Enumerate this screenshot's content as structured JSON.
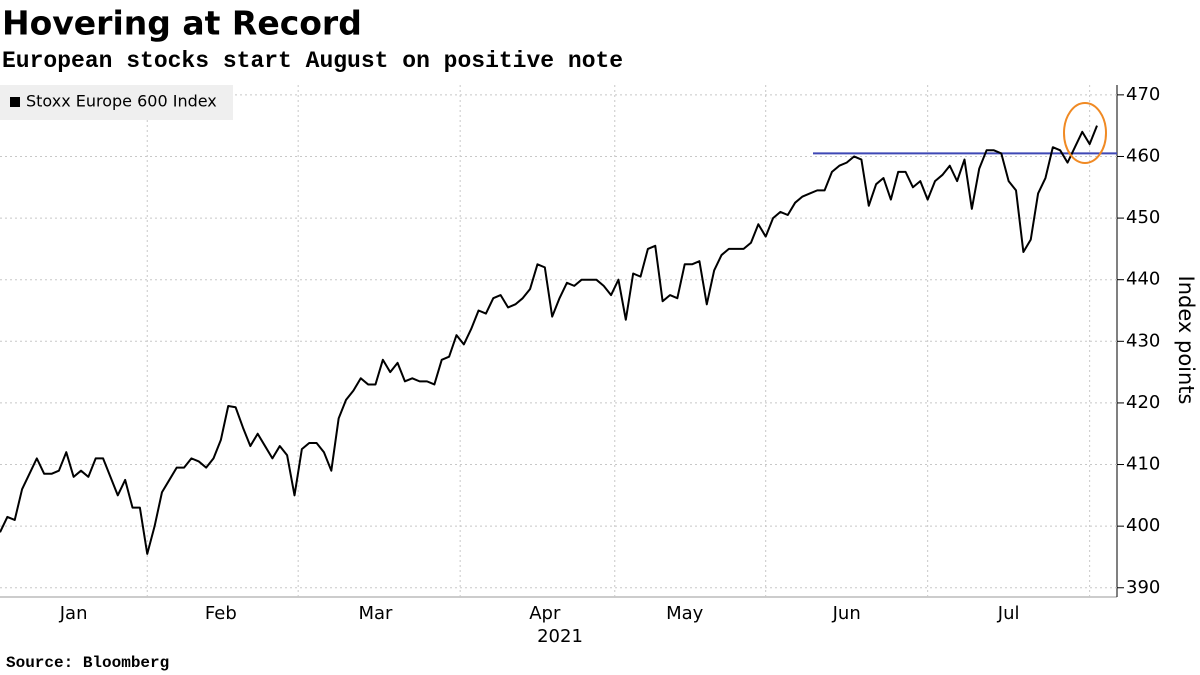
{
  "chart_data": {
    "type": "line",
    "title": "Hovering at Record",
    "subtitle": "European stocks start August on positive note",
    "source": "Source: Bloomberg",
    "xlabel": "2021",
    "ylabel": "Index points",
    "categories": [
      null,
      null,
      null,
      null,
      null,
      null,
      null,
      null,
      null,
      null,
      "Jan",
      null,
      null,
      null,
      null,
      null,
      null,
      null,
      null,
      null,
      null,
      null,
      null,
      null,
      null,
      null,
      null,
      null,
      null,
      null,
      "Feb",
      null,
      null,
      null,
      null,
      null,
      null,
      null,
      null,
      null,
      null,
      null,
      null,
      null,
      null,
      null,
      null,
      null,
      null,
      null,
      null,
      "Mar",
      null,
      null,
      null,
      null,
      null,
      null,
      null,
      null,
      null,
      null,
      null,
      null,
      null,
      null,
      null,
      null,
      null,
      null,
      null,
      null,
      null,
      null,
      "Apr",
      null,
      null,
      null,
      null,
      null,
      null,
      null,
      null,
      null,
      null,
      null,
      null,
      null,
      null,
      null,
      null,
      null,
      null,
      "May",
      null,
      null,
      null,
      null,
      null,
      null,
      null,
      null,
      null,
      null,
      null,
      null,
      null,
      null,
      null,
      null,
      null,
      null,
      null,
      null,
      null,
      "Jun",
      null,
      null,
      null,
      null,
      null,
      null,
      null,
      null,
      null,
      null,
      null,
      null,
      null,
      null,
      null,
      null,
      null,
      null,
      null,
      null,
      null,
      "Jul",
      null,
      null,
      null,
      null,
      null,
      null,
      null,
      null,
      null,
      null,
      null,
      null
    ],
    "series": [
      {
        "name": "Stoxx Europe 600 Index",
        "color": "#000000",
        "values": [
          399,
          401.5,
          401,
          406,
          408.5,
          411,
          408.5,
          408.5,
          409,
          412,
          408,
          409,
          408,
          411,
          411,
          408,
          405,
          407.5,
          403,
          403,
          395.5,
          400,
          405.5,
          407.5,
          409.5,
          409.5,
          411,
          410.5,
          409.5,
          411,
          414,
          419.5,
          419.3,
          416,
          413,
          415,
          413,
          411,
          413,
          411.5,
          405,
          412.5,
          413.5,
          413.5,
          412,
          409,
          417.5,
          420.5,
          422,
          424,
          423,
          423,
          427,
          425,
          426.5,
          423.5,
          424,
          423.5,
          423.5,
          423,
          427,
          427.5,
          431,
          429.5,
          432,
          435,
          434.5,
          437,
          437.5,
          435.5,
          436,
          437,
          438.5,
          442.5,
          442,
          434,
          437,
          439.5,
          439,
          440,
          440,
          440,
          439,
          437.5,
          440,
          433.5,
          441,
          440.5,
          445,
          445.5,
          436.5,
          437.5,
          437,
          442.5,
          442.5,
          443,
          436,
          441.5,
          444,
          445,
          445,
          445,
          446,
          449,
          447,
          450,
          451,
          450.5,
          452.5,
          453.5,
          454,
          454.5,
          454.5,
          457.5,
          458.5,
          459,
          460,
          459.5,
          452,
          455.5,
          456.5,
          453,
          457.5,
          457.5,
          455,
          456,
          453,
          456,
          457,
          458.5,
          456,
          459.5,
          451.5,
          458,
          461,
          461,
          460.5,
          456,
          454.5,
          444.5,
          446.5,
          454,
          456.5,
          461.5,
          461,
          459,
          461.5,
          464,
          462,
          465
        ]
      }
    ],
    "reference_line": {
      "value": 460.5,
      "color": "#3f48b5"
    },
    "ylim": [
      388.5,
      471.6
    ],
    "yticks": [
      390,
      400,
      410,
      420,
      430,
      440,
      450,
      460,
      470
    ],
    "grid": true,
    "legend": "upper left"
  }
}
